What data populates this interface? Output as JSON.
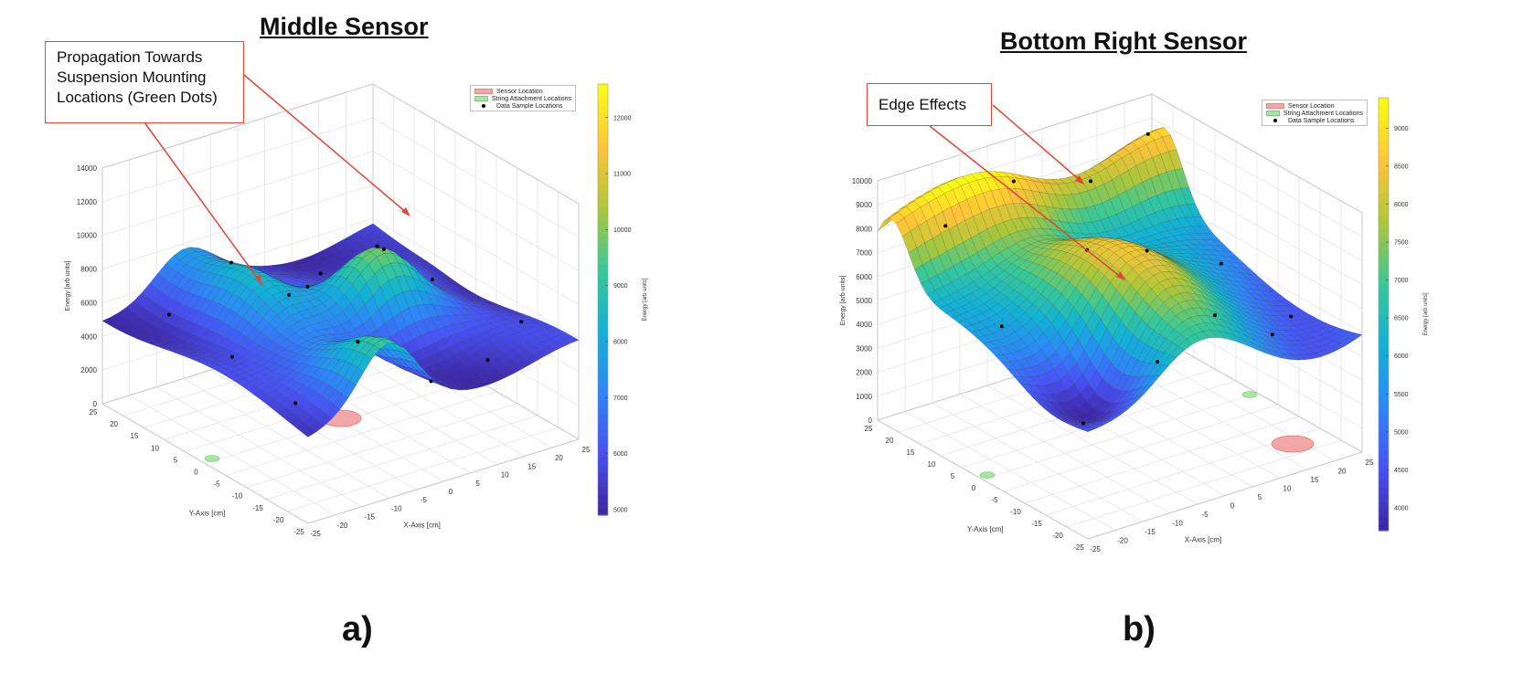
{
  "panels": [
    {
      "title": "Middle Sensor",
      "letter": "a)",
      "callout": [
        "Propagation Towards",
        "Suspension Mounting",
        "Locations (Green Dots)"
      ],
      "legend": {
        "sensor": "Sensor Location",
        "string": "String Attachment Locations",
        "samples": "Data Sample Locations"
      },
      "colors": {
        "sensor": "#f4a6a6",
        "string": "#a8e6a0"
      }
    },
    {
      "title": "Bottom Right Sensor",
      "letter": "b)",
      "callout": [
        "Edge Effects"
      ],
      "legend": {
        "sensor": "Sensor Location",
        "string": "String Attachment Locations",
        "samples": "Data Sample Locations"
      },
      "colors": {
        "sensor": "#f4a6a6",
        "string": "#a8e6a0"
      }
    }
  ],
  "chart_data": [
    {
      "type": "surface",
      "title": "Middle Sensor",
      "xlabel": "X-Axis [cm]",
      "ylabel": "Y-Axis [cm]",
      "zlabel": "Energy [arb units]",
      "colorbar_label": "Energy [arb units]",
      "xlim": [
        -25,
        25
      ],
      "ylim": [
        -25,
        25
      ],
      "zlim": [
        0,
        14000
      ],
      "x_ticks": [
        "-25",
        "-20",
        "-15",
        "-10",
        "-5",
        "0",
        "5",
        "10",
        "15",
        "20",
        "25"
      ],
      "y_ticks": [
        "25",
        "20",
        "15",
        "10",
        "5",
        "0",
        "-5",
        "-10",
        "-15",
        "-20",
        "-25"
      ],
      "z_ticks": [
        "0",
        "2000",
        "4000",
        "6000",
        "8000",
        "10000",
        "12000",
        "14000"
      ],
      "colorbar_ticks": [
        "5000",
        "6000",
        "7000",
        "8000",
        "9000",
        "10000",
        "11000",
        "12000"
      ],
      "colorbar_range": [
        4900,
        12600
      ],
      "colormap": "parula",
      "grid": true,
      "legend_position": "top-right",
      "legend": [
        "Sensor Location",
        "String Attachment Locations",
        "Data Sample Locations"
      ],
      "annotations": [
        "Propagation Towards Suspension Mounting Locations (Green Dots)"
      ]
    },
    {
      "type": "surface",
      "title": "Bottom Right Sensor",
      "xlabel": "X-Axis [cm]",
      "ylabel": "Y-Axis [cm]",
      "zlabel": "Energy [arb units]",
      "colorbar_label": "Energy [arb units]",
      "xlim": [
        -25,
        25
      ],
      "ylim": [
        -25,
        25
      ],
      "zlim": [
        0,
        10000
      ],
      "x_ticks": [
        "-25",
        "-20",
        "-15",
        "-10",
        "-5",
        "0",
        "5",
        "10",
        "15",
        "20",
        "25"
      ],
      "y_ticks": [
        "25",
        "20",
        "15",
        "10",
        "5",
        "0",
        "-5",
        "-10",
        "-15",
        "-20",
        "-25"
      ],
      "z_ticks": [
        "0",
        "1000",
        "2000",
        "3000",
        "4000",
        "5000",
        "6000",
        "7000",
        "8000",
        "9000",
        "10000"
      ],
      "colorbar_ticks": [
        "4000",
        "4500",
        "5000",
        "5500",
        "6000",
        "6500",
        "7000",
        "7500",
        "8000",
        "8500",
        "9000"
      ],
      "colorbar_range": [
        3700,
        9400
      ],
      "colormap": "parula",
      "grid": true,
      "legend_position": "top-right",
      "legend": [
        "Sensor Location",
        "String Attachment Locations",
        "Data Sample Locations"
      ],
      "annotations": [
        "Edge Effects"
      ]
    }
  ]
}
